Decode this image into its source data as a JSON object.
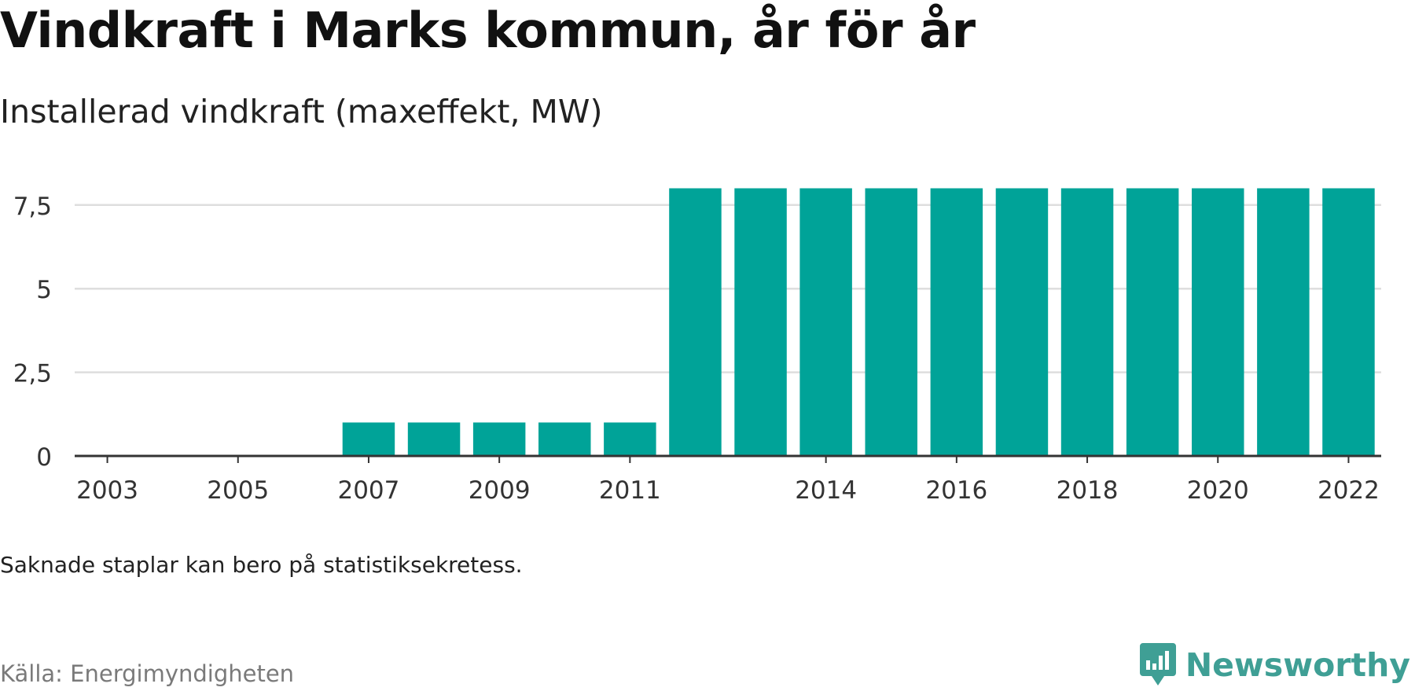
{
  "title": "Vindkraft i Marks kommun, år för år",
  "subtitle": "Installerad vindkraft (maxeffekt, MW)",
  "note": "Saknade staplar kan bero på statistiksekretess.",
  "source": "Källa: Energimyndigheten",
  "brand": "Newsworthy",
  "colors": {
    "bar": "#00a398",
    "grid": "#dedede",
    "baseline": "#333333",
    "brand": "#3f9f95"
  },
  "chart_data": {
    "type": "bar",
    "categories": [
      "2003",
      "2004",
      "2005",
      "2006",
      "2007",
      "2008",
      "2009",
      "2010",
      "2011",
      "2012",
      "2013",
      "2014",
      "2015",
      "2016",
      "2017",
      "2018",
      "2019",
      "2020",
      "2021",
      "2022"
    ],
    "x_tick_labels": [
      "2003",
      "2005",
      "2007",
      "2009",
      "2011",
      "2014",
      "2016",
      "2018",
      "2020",
      "2022"
    ],
    "values": [
      0,
      0,
      0,
      0,
      1,
      1,
      1,
      1,
      1,
      8,
      8,
      8,
      8,
      8,
      8,
      8,
      8,
      8,
      8,
      8
    ],
    "y_ticks": [
      0,
      2.5,
      5,
      7.5
    ],
    "y_tick_labels": [
      "0",
      "2,5",
      "5",
      "7,5"
    ],
    "ylim": [
      0,
      8.2
    ],
    "grid": true
  }
}
